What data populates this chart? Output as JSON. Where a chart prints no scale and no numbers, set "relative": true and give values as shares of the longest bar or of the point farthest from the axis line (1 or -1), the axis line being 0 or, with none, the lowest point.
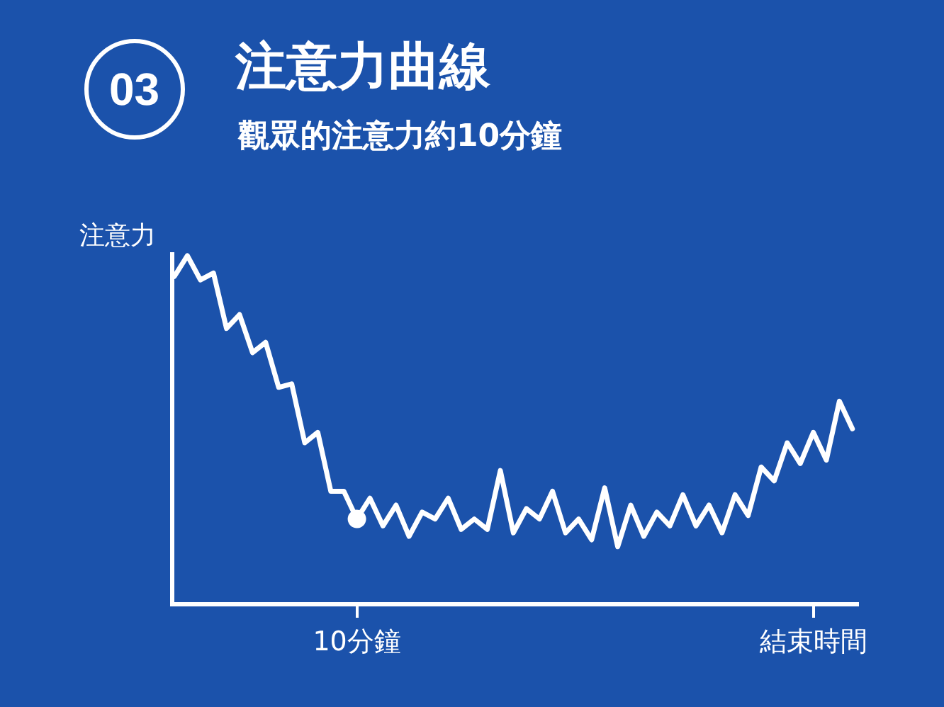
{
  "chart_data": {
    "type": "line",
    "title": "注意力曲線",
    "subtitle": "觀眾的注意力約10分鐘",
    "ylabel": "注意力",
    "annotations": [
      "03"
    ],
    "relative": true,
    "marker": "none",
    "line_style": "solid",
    "categories": [
      null,
      null,
      null,
      null,
      null,
      null,
      null,
      null,
      null,
      null,
      null,
      null,
      null,
      null,
      "10分鐘",
      null,
      null,
      null,
      null,
      null,
      null,
      null,
      null,
      null,
      null,
      null,
      null,
      null,
      null,
      null,
      null,
      null,
      null,
      null,
      null,
      null,
      null,
      null,
      null,
      null,
      null,
      null,
      null,
      null,
      null,
      null,
      null,
      null,
      null,
      "結束時間",
      null,
      null,
      null
    ],
    "series": [
      {
        "color": "#ffffff",
        "values": [
          0.94,
          1.0,
          0.93,
          0.95,
          0.79,
          0.83,
          0.72,
          0.75,
          0.62,
          0.63,
          0.46,
          0.49,
          0.32,
          0.32,
          0.24,
          0.3,
          0.22,
          0.28,
          0.19,
          0.26,
          0.24,
          0.3,
          0.21,
          0.24,
          0.21,
          0.38,
          0.2,
          0.27,
          0.24,
          0.32,
          0.2,
          0.24,
          0.18,
          0.33,
          0.16,
          0.28,
          0.19,
          0.26,
          0.22,
          0.31,
          0.22,
          0.28,
          0.2,
          0.31,
          0.25,
          0.39,
          0.35,
          0.46,
          0.4,
          0.49,
          0.41,
          0.58,
          0.5
        ]
      },
      {
        "type": "scatter",
        "marker": "circle",
        "color": "#ffffff",
        "x": [
          "10分鐘"
        ],
        "values": [
          0.24
        ]
      }
    ]
  }
}
